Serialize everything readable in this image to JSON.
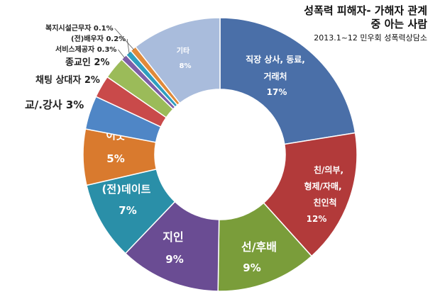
{
  "chart_data": {
    "type": "pie",
    "subtype": "donut",
    "title": "성폭력 피해자- 가해자 관계",
    "title_line2": "중 아는 사람",
    "subtitle": "2013.1~12 민우회 성폭력상담소",
    "slices": [
      {
        "label": "직장 상사, 동료, 거래처",
        "value": 17,
        "display": "17%",
        "color": "#4a6fa8"
      },
      {
        "label": "친/의부, 형제/자매, 친인척",
        "value": 12,
        "display": "12%",
        "color": "#b23a3a"
      },
      {
        "label": "선/후배",
        "value": 9,
        "display": "9%",
        "color": "#7a9d3a"
      },
      {
        "label": "지인",
        "value": 9,
        "display": "9%",
        "color": "#6a4c93"
      },
      {
        "label": "(전)데이트",
        "value": 7,
        "display": "7%",
        "color": "#2a8fa8"
      },
      {
        "label": "이웃",
        "value": 5,
        "display": "5%",
        "color": "#d97a2e"
      },
      {
        "label": "교/.강사",
        "value": 3,
        "display": "3%",
        "color": "#4f86c6"
      },
      {
        "label": "채팅 상대자",
        "value": 2,
        "display": "2%",
        "color": "#c94a4a"
      },
      {
        "label": "종교인",
        "value": 2,
        "display": "2%",
        "color": "#9bbb59"
      },
      {
        "label": "서비스제공자",
        "value": 0.3,
        "display": "0.3%",
        "color": "#7e5ea8"
      },
      {
        "label": "(전)배우자",
        "value": 0.2,
        "display": "0.2%",
        "color": "#2f9fbf"
      },
      {
        "label": "복지시설근무자",
        "value": 0.1,
        "display": "0.1%",
        "color": "#e08a3a"
      },
      {
        "label": "기타",
        "value": 8,
        "display": "8%",
        "color": "#a9bcdc"
      }
    ]
  }
}
